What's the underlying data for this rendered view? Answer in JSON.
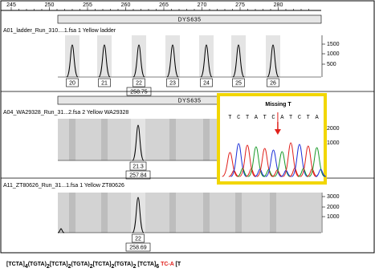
{
  "ruler": {
    "ticks": [
      245,
      250,
      255,
      260,
      265,
      270,
      275,
      280
    ]
  },
  "panels": [
    {
      "marker": "DYS635",
      "sample": "A01_ladder_Run_310....1.fsa  1 Yellow  ladder",
      "yticks": [
        1500,
        1000,
        500
      ],
      "alleles": [
        {
          "label": "20"
        },
        {
          "label": "21"
        },
        {
          "label": "22",
          "size": "258.75"
        },
        {
          "label": "23"
        },
        {
          "label": "24"
        },
        {
          "label": "25"
        },
        {
          "label": "26"
        }
      ]
    },
    {
      "marker": "DYS635",
      "sample": "A04_WA29328_Run_31...2.fsa  2 Yellow  WA29328",
      "yticks": [
        2000,
        1000
      ],
      "alleles": [
        {
          "label": "21.3",
          "size": "257.84"
        }
      ]
    },
    {
      "sample": "A11_ZT80626_Run_31...1.fsa  1 Yellow  ZT80626",
      "yticks": [
        3000,
        2000,
        1000
      ],
      "alleles": [
        {
          "label": "22",
          "size": "258.69"
        }
      ]
    }
  ],
  "inset": {
    "title": "Missing T",
    "sequence": [
      "T",
      "C",
      "T",
      "A",
      "T",
      "C",
      "A",
      "T",
      "C",
      "T",
      "A"
    ]
  },
  "repeat_structure": [
    {
      "text": "[TCTA]",
      "sub": "4"
    },
    {
      "text": "(TGTA)",
      "sub": "2"
    },
    {
      "text": "[TCTA]",
      "sub": "2"
    },
    {
      "text": "(TGTA)",
      "sub": "2"
    },
    {
      "text": "[TCTA]",
      "sub": "2"
    },
    {
      "text": "(TGTA)",
      "sub": "2"
    },
    {
      "text": " [TCTA]",
      "sub": "6"
    },
    {
      "text": " TC-A",
      "highlight": true
    },
    {
      "text": " [T"
    }
  ]
}
